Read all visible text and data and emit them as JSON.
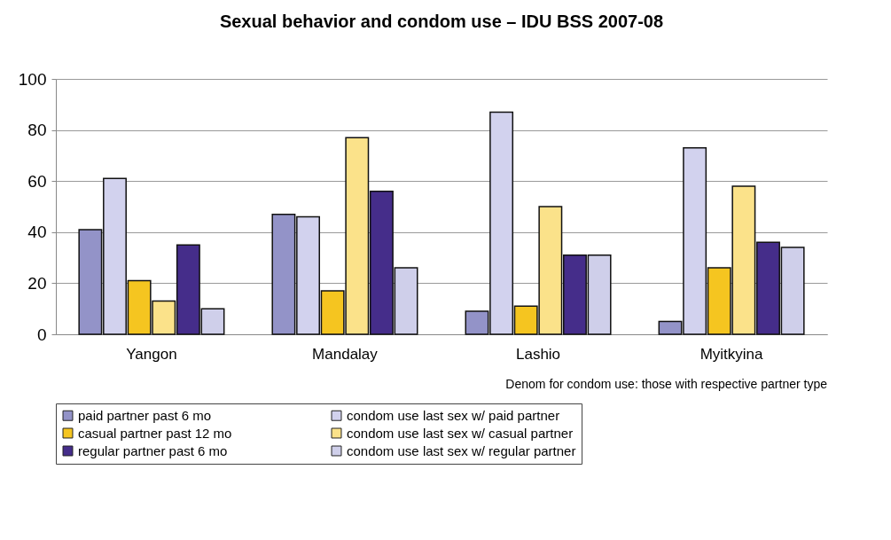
{
  "chart_data": {
    "type": "bar",
    "title": "Sexual behavior and condom use – IDU BSS 2007-08",
    "categories": [
      "Yangon",
      "Mandalay",
      "Lashio",
      "Myitkyina"
    ],
    "series": [
      {
        "name": "paid partner past 6 mo",
        "color": "#9393c8",
        "values": [
          41,
          47,
          9,
          5
        ]
      },
      {
        "name": "condom use last sex w/ paid partner",
        "color": "#d2d2ee",
        "values": [
          61,
          46,
          87,
          73
        ]
      },
      {
        "name": "casual partner past 12 mo",
        "color": "#f5c520",
        "values": [
          21,
          17,
          11,
          26
        ]
      },
      {
        "name": "condom use last sex w/ casual partner",
        "color": "#fbe28a",
        "values": [
          13,
          77,
          50,
          58
        ]
      },
      {
        "name": "regular partner past 6 mo",
        "color": "#452d8a",
        "values": [
          35,
          56,
          31,
          36
        ]
      },
      {
        "name": "condom use last sex w/ regular partner",
        "color": "#cfcfea",
        "values": [
          10,
          26,
          31,
          34
        ]
      }
    ],
    "ylim": [
      0,
      100
    ],
    "yticks": [
      0,
      20,
      40,
      60,
      80,
      100
    ],
    "grid": "y",
    "legend": "bottom",
    "annotations": [
      "Denom for condom use: those with respective partner type"
    ]
  }
}
